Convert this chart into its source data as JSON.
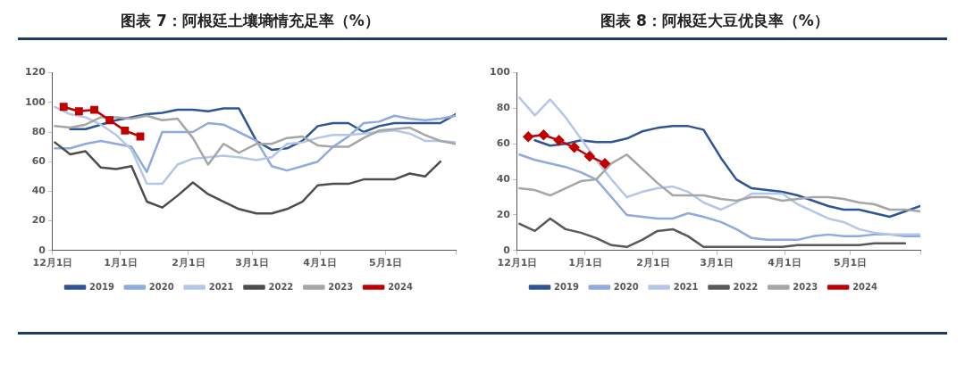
{
  "chart_data": [
    {
      "type": "line",
      "title": "图表 7：阿根廷土壤墒情充足率（%）",
      "x": [
        "2023-12-02",
        "2023-12-09",
        "2023-12-16",
        "2023-12-23",
        "2023-12-30",
        "2024-01-06",
        "2024-01-13",
        "2024-01-20",
        "2024-01-27",
        "2024-02-03",
        "2024-02-10",
        "2024-02-17",
        "2024-02-24",
        "2024-03-03",
        "2024-03-10",
        "2024-03-17",
        "2024-03-24",
        "2024-03-31",
        "2024-04-07",
        "2024-04-14",
        "2024-04-21",
        "2024-04-28",
        "2024-05-05",
        "2024-05-12",
        "2024-05-19",
        "2024-05-26",
        "2024-06-02"
      ],
      "xlim": [
        "2023-12-01",
        "2024-06-02"
      ],
      "xticks": [
        {
          "value": "2023-12-01",
          "label": "12月1日"
        },
        {
          "value": "2024-01-01",
          "label": "1月1日"
        },
        {
          "value": "2024-02-01",
          "label": "2月1日"
        },
        {
          "value": "2024-03-01",
          "label": "3月1日"
        },
        {
          "value": "2024-04-01",
          "label": "4月1日"
        },
        {
          "value": "2024-05-01",
          "label": "5月1日"
        },
        {
          "value": "2024-06-02",
          "label": null
        }
      ],
      "ylim": [
        0,
        120
      ],
      "yticks": [
        0,
        20,
        40,
        60,
        80,
        100,
        120
      ],
      "grid": false,
      "legend": "bottom",
      "marker": "none",
      "line_style": "solid",
      "series": [
        {
          "name": "2019",
          "color": "#2f5597",
          "values": [
            null,
            82,
            82,
            85,
            88,
            90,
            92,
            93,
            95,
            95,
            94,
            96,
            96,
            74,
            68,
            69,
            74,
            84,
            86,
            86,
            80,
            84,
            86,
            86,
            86,
            86,
            92
          ]
        },
        {
          "name": "2020",
          "color": "#8faadc",
          "values": [
            69,
            69,
            72,
            74,
            72,
            70,
            53,
            80,
            80,
            80,
            86,
            85,
            80,
            74,
            57,
            54,
            57,
            60,
            70,
            77,
            86,
            87,
            91,
            89,
            88,
            89,
            91
          ]
        },
        {
          "name": "2021",
          "color": "#b4c7e7",
          "values": [
            97,
            92,
            90,
            85,
            78,
            68,
            45,
            45,
            58,
            62,
            63,
            64,
            63,
            61,
            63,
            72,
            73,
            76,
            78,
            78,
            79,
            80,
            81,
            79,
            74,
            74,
            73
          ]
        },
        {
          "name": "2022",
          "color": "#4d4d4d",
          "values": [
            73,
            65,
            67,
            56,
            55,
            57,
            33,
            29,
            37,
            46,
            38,
            33,
            28,
            25,
            25,
            28,
            33,
            44,
            45,
            45,
            48,
            48,
            48,
            52,
            50,
            60,
            null
          ]
        },
        {
          "name": "2023",
          "color": "#a6a6a6",
          "values": [
            84,
            83,
            85,
            90,
            90,
            89,
            91,
            88,
            89,
            76,
            58,
            72,
            66,
            72,
            72,
            76,
            77,
            71,
            70,
            70,
            76,
            81,
            82,
            83,
            78,
            74,
            72
          ]
        },
        {
          "name": "2024",
          "color": "#c00000",
          "marker": "square",
          "x": [
            "2023-12-06",
            "2023-12-13",
            "2023-12-20",
            "2023-12-27",
            "2024-01-03",
            "2024-01-10"
          ],
          "values": [
            97,
            94,
            95,
            88,
            81,
            77
          ]
        }
      ]
    },
    {
      "type": "line",
      "title": "图表 8：阿根廷大豆优良率（%）",
      "x": [
        "2023-12-02",
        "2023-12-09",
        "2023-12-16",
        "2023-12-23",
        "2023-12-30",
        "2024-01-06",
        "2024-01-13",
        "2024-01-20",
        "2024-01-27",
        "2024-02-03",
        "2024-02-10",
        "2024-02-17",
        "2024-02-24",
        "2024-03-03",
        "2024-03-10",
        "2024-03-17",
        "2024-03-24",
        "2024-03-31",
        "2024-04-07",
        "2024-04-14",
        "2024-04-21",
        "2024-04-28",
        "2024-05-05",
        "2024-05-12",
        "2024-05-19",
        "2024-05-26",
        "2024-06-02"
      ],
      "xlim": [
        "2023-12-01",
        "2024-06-02"
      ],
      "xticks": [
        {
          "value": "2023-12-01",
          "label": "12月1日"
        },
        {
          "value": "2024-01-01",
          "label": "1月1日"
        },
        {
          "value": "2024-02-01",
          "label": "2月1日"
        },
        {
          "value": "2024-03-01",
          "label": "3月1日"
        },
        {
          "value": "2024-04-01",
          "label": "4月1日"
        },
        {
          "value": "2024-05-01",
          "label": "5月1日"
        },
        {
          "value": "2024-06-02",
          "label": null
        }
      ],
      "ylim": [
        0,
        100
      ],
      "yticks": [
        0,
        20,
        40,
        60,
        80,
        100
      ],
      "grid": false,
      "legend": "bottom",
      "marker": "none",
      "line_style": "solid",
      "series": [
        {
          "name": "2019",
          "color": "#2f5597",
          "values": [
            null,
            62,
            59,
            60,
            62,
            61,
            61,
            63,
            67,
            69,
            70,
            70,
            68,
            52,
            40,
            35,
            34,
            33,
            31,
            28,
            25,
            23,
            23,
            21,
            19,
            22,
            25
          ]
        },
        {
          "name": "2020",
          "color": "#8faadc",
          "values": [
            54,
            51,
            49,
            47,
            44,
            40,
            30,
            20,
            19,
            18,
            18,
            21,
            19,
            16,
            12,
            7,
            6,
            6,
            6,
            8,
            9,
            8,
            8,
            9,
            9,
            8,
            8
          ]
        },
        {
          "name": "2021",
          "color": "#b4c7e7",
          "values": [
            86,
            76,
            85,
            75,
            63,
            51,
            40,
            30,
            33,
            35,
            36,
            33,
            27,
            23,
            27,
            32,
            32,
            32,
            26,
            22,
            18,
            16,
            12,
            10,
            9,
            9,
            9
          ]
        },
        {
          "name": "2022",
          "color": "#595959",
          "values": [
            15,
            11,
            18,
            12,
            10,
            7,
            3,
            2,
            6,
            11,
            12,
            8,
            2,
            2,
            2,
            2,
            2,
            2,
            3,
            3,
            3,
            3,
            3,
            4,
            4,
            4,
            null
          ]
        },
        {
          "name": "2023",
          "color": "#a6a6a6",
          "values": [
            35,
            34,
            31,
            35,
            39,
            40,
            49,
            54,
            46,
            38,
            31,
            31,
            31,
            29,
            28,
            30,
            30,
            28,
            29,
            30,
            30,
            29,
            27,
            26,
            23,
            23,
            22
          ]
        },
        {
          "name": "2024",
          "color": "#c00000",
          "marker": "diamond",
          "x": [
            "2023-12-06",
            "2023-12-13",
            "2023-12-20",
            "2023-12-27",
            "2024-01-03",
            "2024-01-10"
          ],
          "values": [
            64,
            65,
            62,
            58,
            53,
            49
          ]
        }
      ]
    }
  ]
}
